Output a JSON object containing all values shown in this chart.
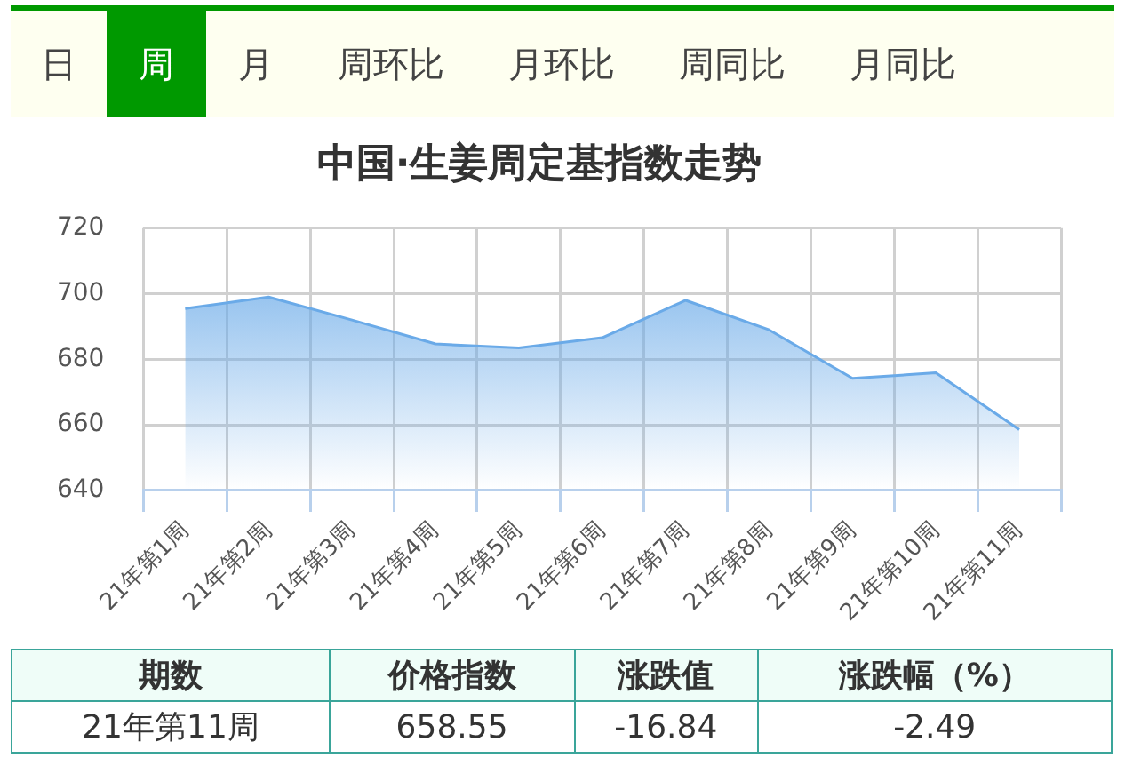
{
  "chart_data": {
    "type": "area",
    "title": "中国·生姜周定基指数走势",
    "categories": [
      "21年第1周",
      "21年第2周",
      "21年第3周",
      "21年第4周",
      "21年第5周",
      "21年第6周",
      "21年第7周",
      "21年第8周",
      "21年第9周",
      "21年第10周",
      "21年第11周"
    ],
    "series": [
      {
        "color": "#6aaae8",
        "values": [
          695.5,
          699,
          692,
          684.7,
          683.5,
          686.6,
          698,
          689,
          674.2,
          675.9,
          658.55
        ]
      }
    ],
    "ylim": [
      640,
      720
    ],
    "yticks": [
      640,
      660,
      680,
      700,
      720
    ],
    "grid": true,
    "legend": false,
    "marker": "none",
    "annotations": [
      "日",
      "周",
      "月",
      "周环比",
      "月环比",
      "周同比",
      "月同比",
      "期数",
      "价格指数",
      "涨跌值",
      "涨跌幅（%）",
      "21年第11周",
      "658.55",
      "-16.84",
      "-2.49"
    ]
  }
}
